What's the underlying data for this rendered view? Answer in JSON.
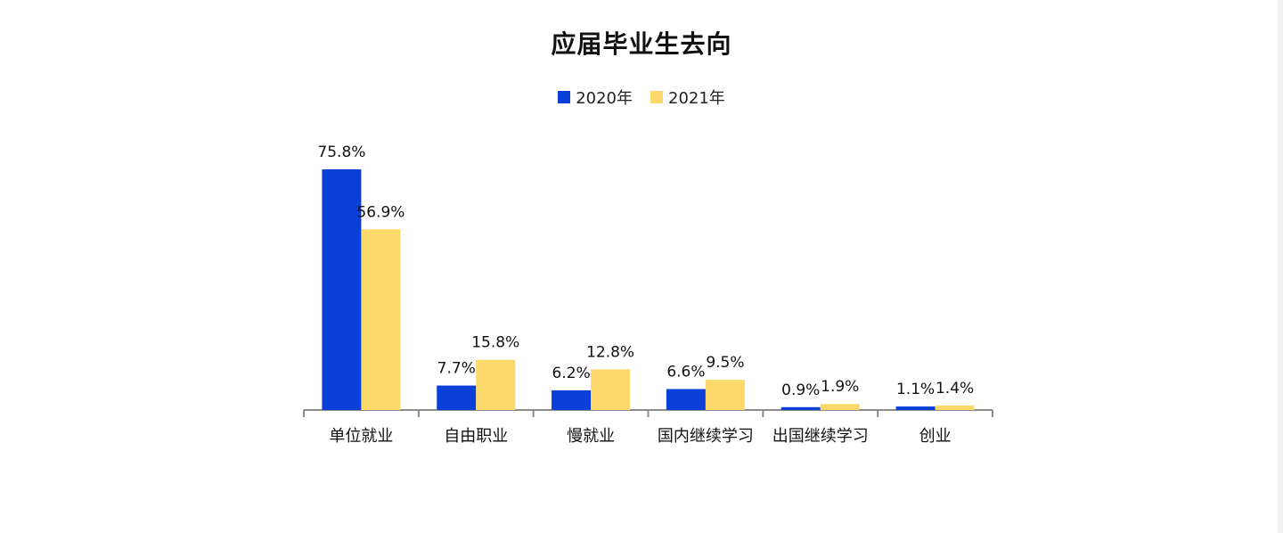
{
  "chart_data": {
    "type": "bar",
    "title": "应届毕业生去向",
    "categories": [
      "单位就业",
      "自由职业",
      "慢就业",
      "国内继续学习",
      "出国继续学习",
      "创业"
    ],
    "series": [
      {
        "name": "2020年",
        "values": [
          75.8,
          7.7,
          6.2,
          6.6,
          0.9,
          1.1
        ],
        "labels": [
          "75.8%",
          "7.7%",
          "6.2%",
          "6.6%",
          "0.9%",
          "1.1%"
        ],
        "color": "#0a3fd8"
      },
      {
        "name": "2021年",
        "values": [
          56.9,
          15.8,
          12.8,
          9.5,
          1.9,
          1.4
        ],
        "labels": [
          "56.9%",
          "15.8%",
          "12.8%",
          "9.5%",
          "1.9%",
          "1.4%"
        ],
        "color": "#fdd96b"
      }
    ],
    "xlabel": "",
    "ylabel": "",
    "ylim": [
      0,
      80
    ],
    "grid": false,
    "legend": "top-center"
  }
}
